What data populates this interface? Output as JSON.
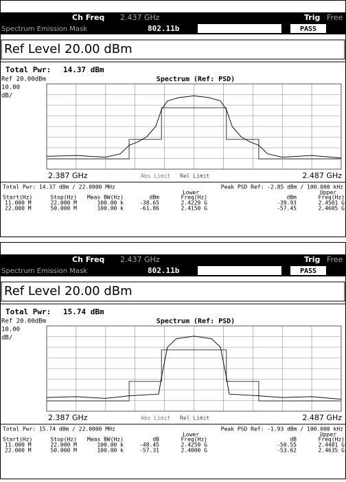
{
  "panels": [
    {
      "header": {
        "ch_freq_label": "Ch Freq",
        "ch_freq": "2.437 GHz",
        "trig_label": "Trig",
        "trig": "Free",
        "mode": "Spectrum Emission Mask",
        "standard": "802.11b",
        "status": "PASS"
      },
      "ref_level": "Ref Level 20.00 dBm",
      "total_pwr_label": "Total Pwr:",
      "total_pwr": "14.37 dBm",
      "ref": "Ref 20.00dBm",
      "plot_title": "Spectrum (Ref: PSD)",
      "scale": "10.00",
      "scale_unit": "dB/",
      "start_freq": "2.387 GHz",
      "stop_freq": "2.487 GHz",
      "legend": [
        "Abs Limit",
        "Rel Limit"
      ],
      "summary": {
        "total_pwr": "Total Pwr: 14.37 dBm / 22.0000 MHz",
        "peak_psd": "Peak PSD Ref: -2.85 dBm / 100.000 kHz"
      },
      "table": {
        "lower": "Lower",
        "upper": "Upper",
        "columns": [
          "Start(Hz)",
          "Stop(Hz)",
          "Meas BW(Hz)",
          "dBm",
          "Freq(Hz)",
          "dBm",
          "Freq(Hz)"
        ],
        "rows": [
          [
            "11.000 M",
            "22.000 M",
            "100.00 k",
            "-38.65",
            "2.4229 G",
            "-39.93",
            "2.4501 G"
          ],
          [
            "22.000 M",
            "50.000 M",
            "100.00 k",
            "-61.86",
            "2.4150 G",
            "-57.45",
            "2.4605 G"
          ]
        ]
      }
    },
    {
      "header": {
        "ch_freq_label": "Ch Freq",
        "ch_freq": "2.437 GHz",
        "trig_label": "Trig",
        "trig": "Free",
        "mode": "Spectrum Emission Mask",
        "standard": "802.11b",
        "status": "PASS"
      },
      "ref_level": "Ref Level 20.00 dBm",
      "total_pwr_label": "Total Pwr:",
      "total_pwr": "15.74 dBm",
      "ref": "Ref 20.00dBm",
      "plot_title": "Spectrum (Ref: PSD)",
      "scale": "10.00",
      "scale_unit": "dB/",
      "start_freq": "2.387 GHz",
      "stop_freq": "2.487 GHz",
      "legend": [
        "Abs Limit",
        "Rel Limit"
      ],
      "summary": {
        "total_pwr": "Total Pwr: 15.74 dBm / 22.0000 MHz",
        "peak_psd": "Peak PSD Ref: -1.93 dBm / 100.000 kHz"
      },
      "table": {
        "lower": "Lower",
        "upper": "Upper",
        "columns": [
          "Start(Hz)",
          "Stop(Hz)",
          "Meas BW(Hz)",
          "dB",
          "Freq(Hz)",
          "dB",
          "Freq(Hz)"
        ],
        "rows": [
          [
            "11.000 M",
            "22.000 M",
            "100.00 k",
            "-48.45",
            "2.4259 G",
            "-50.55",
            "2.4481 G"
          ],
          [
            "22.000 M",
            "50.000 M",
            "100.00 k",
            "-57.31",
            "2.4000 G",
            "-53.62",
            "2.4635 G"
          ]
        ]
      }
    }
  ]
}
